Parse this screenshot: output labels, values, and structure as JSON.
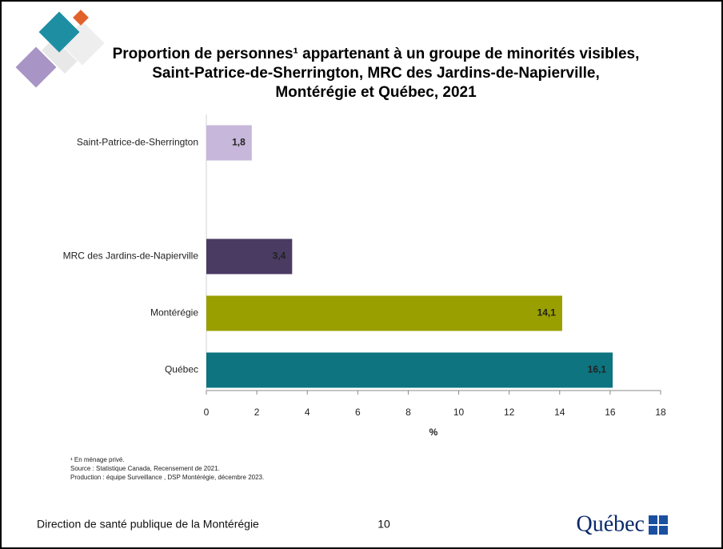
{
  "chart_data": {
    "type": "hbar",
    "title": [
      "Proportion de personnes¹ appartenant à un groupe de minorités visibles,",
      "Saint-Patrice-de-Sherrington, MRC des Jardins-de-Napierville,",
      "Montérégie et Québec, 2021"
    ],
    "categories": [
      "Saint-Patrice-de-Sherrington",
      null,
      "MRC des Jardins-de-Napierville",
      "Montérégie",
      "Québec"
    ],
    "values": [
      1.8,
      null,
      3.4,
      14.1,
      16.1
    ],
    "value_labels": [
      "1,8",
      null,
      "3,4",
      "14,1",
      "16,1"
    ],
    "colors": [
      "#c7b7da",
      null,
      "#4a3b63",
      "#9a9f00",
      "#0d7480"
    ],
    "label_colors": [
      "#333333",
      null,
      "#ffffff",
      "#ffffff",
      "#ffffff"
    ],
    "xlim": [
      0,
      18
    ],
    "xticks": [
      0,
      2,
      4,
      6,
      8,
      10,
      12,
      14,
      16,
      18
    ],
    "xlabel": "%"
  },
  "footnotes": [
    "¹ En ménage privé.",
    "Source : Statistique Canada, Recensement de 2021.",
    "Production : équipe Surveillance , DSP Montérégie, décembre 2023."
  ],
  "footer": {
    "organization": "Direction de santé publique de la Montérégie",
    "page_number": 10,
    "logo": "Québec"
  }
}
